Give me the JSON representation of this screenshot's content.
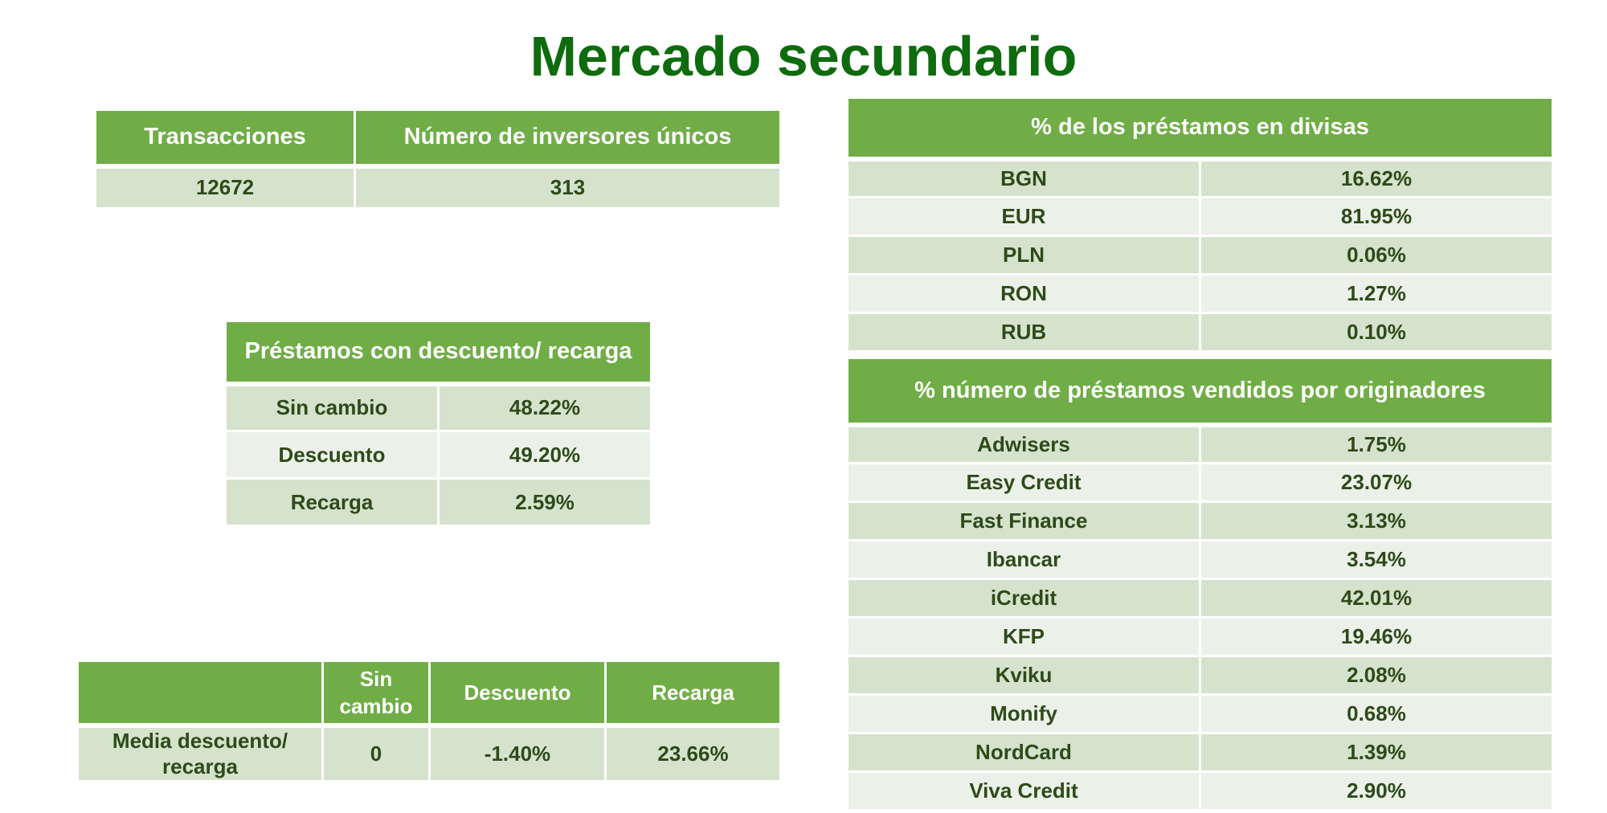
{
  "title": "Mercado secundario",
  "summary": {
    "headers": [
      "Transacciones",
      "Número de inversores únicos"
    ],
    "values": [
      "12672",
      "313"
    ]
  },
  "discount_table": {
    "header": "Préstamos con descuento/ recarga",
    "rows": [
      {
        "label": "Sin cambio",
        "value": "48.22%"
      },
      {
        "label": "Descuento",
        "value": "49.20%"
      },
      {
        "label": "Recarga",
        "value": "2.59%"
      }
    ]
  },
  "media_table": {
    "headers": [
      "",
      "Sin cambio",
      "Descuento",
      "Recarga"
    ],
    "row": {
      "label": "Media descuento/ recarga",
      "values": [
        "0",
        "-1.40%",
        "23.66%"
      ]
    }
  },
  "currency_table": {
    "header": "% de los  préstamos en divisas",
    "rows": [
      {
        "label": "BGN",
        "value": "16.62%"
      },
      {
        "label": "EUR",
        "value": "81.95%"
      },
      {
        "label": "PLN",
        "value": "0.06%"
      },
      {
        "label": "RON",
        "value": "1.27%"
      },
      {
        "label": "RUB",
        "value": "0.10%"
      }
    ]
  },
  "originators_table": {
    "header": "% número de préstamos vendidos por originadores",
    "rows": [
      {
        "label": "Adwisers",
        "value": "1.75%"
      },
      {
        "label": "Easy Credit",
        "value": "23.07%"
      },
      {
        "label": "Fast Finance",
        "value": "3.13%"
      },
      {
        "label": "Ibancar",
        "value": "3.54%"
      },
      {
        "label": "iCredit",
        "value": "42.01%"
      },
      {
        "label": "KFP",
        "value": "19.46%"
      },
      {
        "label": "Kviku",
        "value": "2.08%"
      },
      {
        "label": "Monify",
        "value": "0.68%"
      },
      {
        "label": "NordCard",
        "value": "1.39%"
      },
      {
        "label": "Viva Credit",
        "value": "2.90%"
      }
    ]
  },
  "colors": {
    "title": "#0e6b0e",
    "header_bg": "#70ad47",
    "row_dark": "#d5e3cd",
    "row_light": "#ebf1e8",
    "text": "#2e4a1a"
  }
}
